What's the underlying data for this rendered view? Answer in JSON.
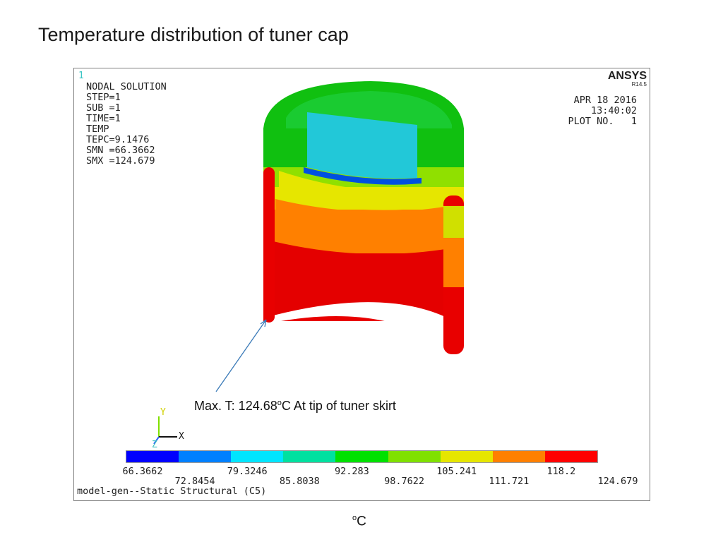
{
  "slide": {
    "title": "Temperature distribution of tuner cap",
    "unit_prefix": "o",
    "unit_suffix": "C"
  },
  "ansys": {
    "window_number": "1",
    "logo": "ANSYS",
    "revision": "R14.5",
    "solution_lines": [
      "NODAL SOLUTION",
      "",
      "STEP=1",
      "SUB =1",
      "TIME=1",
      "TEMP",
      "TEPC=9.1476",
      "SMN =66.3662",
      "SMX =124.679"
    ],
    "date": "APR 18 2016",
    "time": "13:40:02",
    "plot_no": "PLOT NO.   1",
    "triad": {
      "y": "Y",
      "x": "X",
      "z": "Z"
    },
    "footer": "model-gen--Static Structural (C5)"
  },
  "annotation": {
    "pre": "Max. T: 124.68",
    "sup": "o",
    "post": "C  At tip of tuner skirt"
  },
  "colorbar": {
    "colors": [
      "#0000ff",
      "#0080ff",
      "#00e5ff",
      "#00e0a0",
      "#00e000",
      "#80e000",
      "#e6e600",
      "#ff8000",
      "#ff0000"
    ],
    "labels_top": [
      "66.3662",
      "79.3246",
      "92.283",
      "105.241",
      "118.2"
    ],
    "labels_bottom": [
      "72.8454",
      "85.8038",
      "98.7622",
      "111.721",
      "124.679"
    ]
  }
}
